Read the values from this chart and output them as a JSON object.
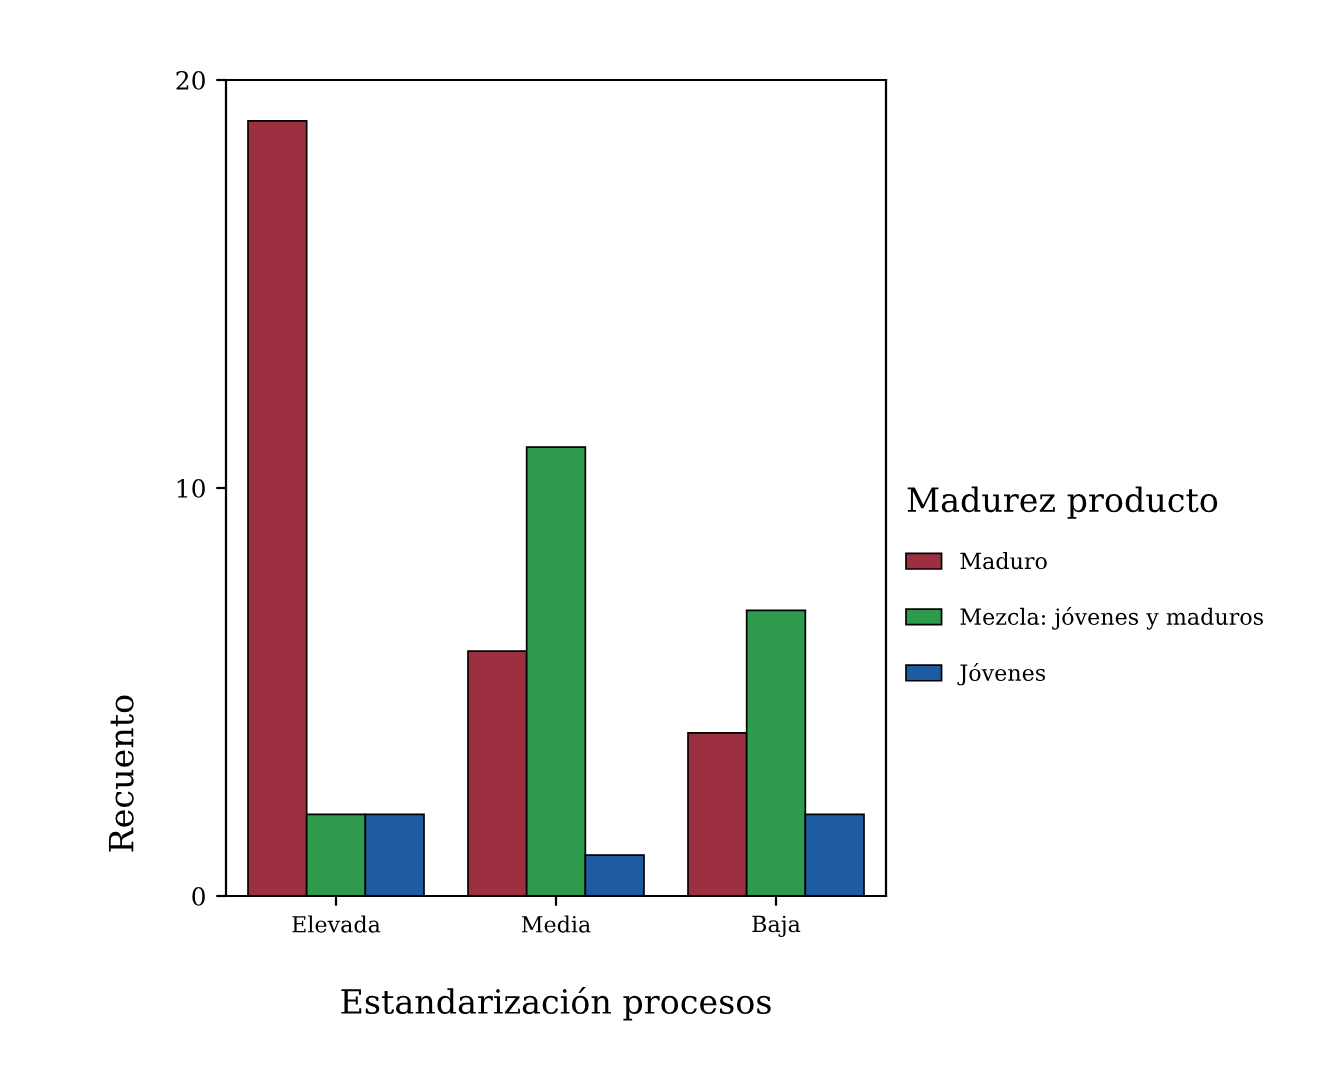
{
  "chart_data": {
    "type": "bar",
    "xlabel": "Estandarización procesos",
    "ylabel": "Recuento",
    "legend_title": "Madurez producto",
    "categories": [
      "Elevada",
      "Media",
      "Baja"
    ],
    "series": [
      {
        "name": "Maduro",
        "color": "#9c2f40",
        "values": [
          19,
          6,
          4
        ]
      },
      {
        "name": "Mezcla: jóvenes y maduros",
        "color": "#2e9a4c",
        "values": [
          2,
          11,
          7
        ]
      },
      {
        "name": "Jóvenes",
        "color": "#1d5ca3",
        "values": [
          2,
          1,
          2
        ]
      }
    ],
    "ylim": [
      0,
      20
    ],
    "yticks": [
      0,
      10,
      20
    ],
    "grid": false,
    "legend": "right"
  }
}
